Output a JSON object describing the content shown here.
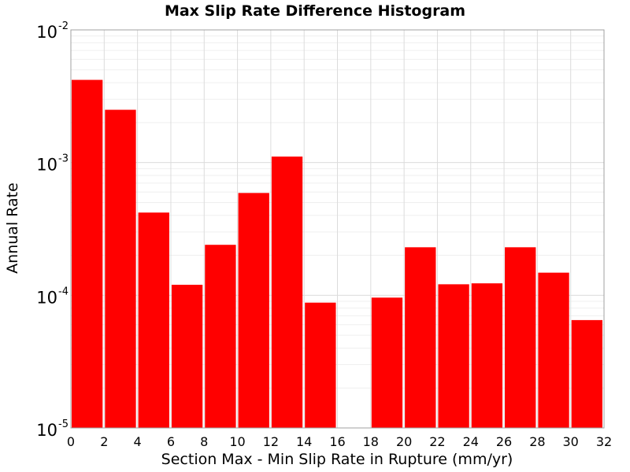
{
  "chart_data": {
    "type": "bar",
    "title": "Max Slip Rate Difference Histogram",
    "xlabel": "Section Max - Min Slip Rate in Rupture (mm/yr)",
    "ylabel": "Annual Rate",
    "y_scale": "log",
    "ylim": [
      1e-05,
      0.01
    ],
    "xlim": [
      0,
      32
    ],
    "xticks": [
      "0",
      "2",
      "4",
      "6",
      "8",
      "10",
      "12",
      "14",
      "16",
      "18",
      "20",
      "22",
      "24",
      "26",
      "28",
      "30",
      "32"
    ],
    "yticks": [
      {
        "base": "10",
        "exp": "-5",
        "value": 1e-05
      },
      {
        "base": "10",
        "exp": "-4",
        "value": 0.0001
      },
      {
        "base": "10",
        "exp": "-3",
        "value": 0.001
      },
      {
        "base": "10",
        "exp": "-2",
        "value": 0.01
      }
    ],
    "bar_color": "#ff0000",
    "grid": true,
    "bars": [
      {
        "x": 1,
        "value": 0.0042
      },
      {
        "x": 3,
        "value": 0.0025
      },
      {
        "x": 5,
        "value": 0.00042
      },
      {
        "x": 7,
        "value": 0.00012
      },
      {
        "x": 9,
        "value": 0.00024
      },
      {
        "x": 11,
        "value": 0.00059
      },
      {
        "x": 13,
        "value": 0.00111
      },
      {
        "x": 15,
        "value": 8.8e-05
      },
      {
        "x": 17,
        "value": 0
      },
      {
        "x": 19,
        "value": 9.6e-05
      },
      {
        "x": 21,
        "value": 0.00023
      },
      {
        "x": 23,
        "value": 0.000121
      },
      {
        "x": 25,
        "value": 0.000123
      },
      {
        "x": 27,
        "value": 0.00023
      },
      {
        "x": 29,
        "value": 0.000148
      },
      {
        "x": 31,
        "value": 6.5e-05
      }
    ]
  }
}
